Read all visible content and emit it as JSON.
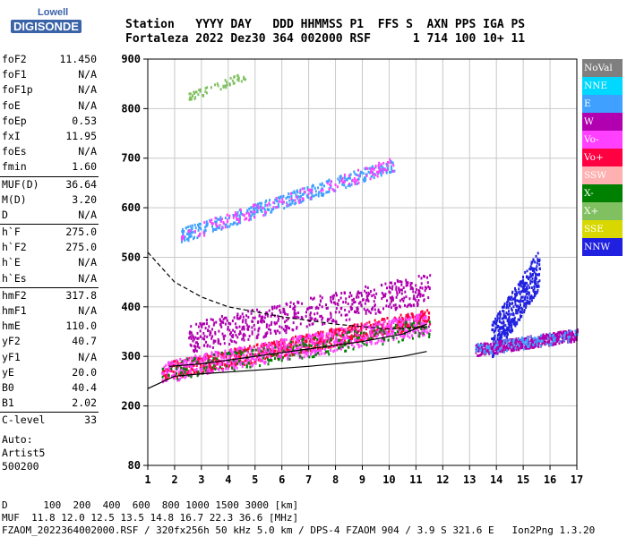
{
  "logo": {
    "line1": "Lowell",
    "line2": "DIGISONDE"
  },
  "header": {
    "row1": "Station   YYYY DAY   DDD HHMMSS P1  FFS S  AXN PPS IGA PS",
    "row2": "Fortaleza 2022 Dez30 364 002000 RSF      1 714 100 10+ 11"
  },
  "params": [
    {
      "group": [
        {
          "k": "foF2",
          "v": "11.450"
        },
        {
          "k": "foF1",
          "v": "N/A"
        },
        {
          "k": "foF1p",
          "v": "N/A"
        },
        {
          "k": "foE",
          "v": "N/A"
        },
        {
          "k": "foEp",
          "v": "0.53"
        },
        {
          "k": "fxI",
          "v": "11.95"
        },
        {
          "k": "foEs",
          "v": "N/A"
        },
        {
          "k": "fmin",
          "v": "1.60"
        }
      ]
    },
    {
      "group": [
        {
          "k": "MUF(D)",
          "v": "36.64"
        },
        {
          "k": "M(D)",
          "v": "3.20"
        },
        {
          "k": "D",
          "v": "N/A"
        }
      ]
    },
    {
      "group": [
        {
          "k": "h`F",
          "v": "275.0"
        },
        {
          "k": "h`F2",
          "v": "275.0"
        },
        {
          "k": "h`E",
          "v": "N/A"
        },
        {
          "k": "h`Es",
          "v": "N/A"
        }
      ]
    },
    {
      "group": [
        {
          "k": "hmF2",
          "v": "317.8"
        },
        {
          "k": "hmF1",
          "v": "N/A"
        },
        {
          "k": "hmE",
          "v": "110.0"
        },
        {
          "k": "yF2",
          "v": "40.7"
        },
        {
          "k": "yF1",
          "v": "N/A"
        },
        {
          "k": "yE",
          "v": "20.0"
        },
        {
          "k": "B0",
          "v": "40.4"
        },
        {
          "k": "B1",
          "v": "2.02"
        }
      ]
    },
    {
      "group": [
        {
          "k": "C-level",
          "v": "33"
        }
      ]
    }
  ],
  "auto": {
    "line1": "Auto:",
    "line2": "Artist5",
    "line3": "500200"
  },
  "legend": [
    {
      "label": "NoVal",
      "color": "#7f7f7f"
    },
    {
      "label": "NNE",
      "color": "#00d8ff"
    },
    {
      "label": "E",
      "color": "#3fa0ff"
    },
    {
      "label": "W",
      "color": "#b000b0"
    },
    {
      "label": "Vo-",
      "color": "#ff40ff"
    },
    {
      "label": "Vo+",
      "color": "#ff0040"
    },
    {
      "label": "SSW",
      "color": "#ffb0b0"
    },
    {
      "label": "X-",
      "color": "#008000"
    },
    {
      "label": "X+",
      "color": "#80c060"
    },
    {
      "label": "SSE",
      "color": "#d8d800"
    },
    {
      "label": "NNW",
      "color": "#2020e0"
    }
  ],
  "footer": {
    "line1": "D      100  200  400  600  800 1000 1500 3000 [km]",
    "line2": "MUF  11.8 12.0 12.5 13.5 14.8 16.7 22.3 36.6 [MHz]",
    "line3": "FZAOM_2022364002000.RSF / 320fx256h 50 kHz 5.0 km / DPS-4 FZAOM 904 / 3.9 S 321.6 E   Ion2Png 1.3.20"
  },
  "chart_data": {
    "type": "scatter",
    "xlim": [
      1,
      17
    ],
    "ylim": [
      80,
      900
    ],
    "x_ticks": [
      1,
      2,
      3,
      4,
      5,
      6,
      7,
      8,
      9,
      10,
      11,
      12,
      13,
      14,
      15,
      16,
      17
    ],
    "y_ticks": [
      80,
      200,
      300,
      400,
      500,
      600,
      700,
      800,
      900
    ],
    "grid": true,
    "echo_clusters": [
      {
        "name": "F2 trace",
        "x": [
          1.5,
          11.5
        ],
        "y": [
          270,
          380
        ],
        "color": "#ff0040",
        "density": 900,
        "spread": 18
      },
      {
        "name": "F2 trace",
        "x": [
          1.5,
          11.5
        ],
        "y": [
          270,
          370
        ],
        "color": "#ff40ff",
        "density": 700,
        "spread": 22
      },
      {
        "name": "F2 trace",
        "x": [
          1.5,
          11.5
        ],
        "y": [
          270,
          360
        ],
        "color": "#008000",
        "density": 220,
        "spread": 20
      },
      {
        "name": "spread F",
        "x": [
          2.5,
          11.5
        ],
        "y": [
          340,
          440
        ],
        "color": "#b000b0",
        "density": 600,
        "spread": 30
      },
      {
        "name": "second hop",
        "x": [
          2.2,
          10.2
        ],
        "y": [
          545,
          690
        ],
        "color": "#3fa0ff",
        "density": 380,
        "spread": 14
      },
      {
        "name": "second hop",
        "x": [
          2.2,
          10.2
        ],
        "y": [
          545,
          690
        ],
        "color": "#ff40ff",
        "density": 150,
        "spread": 14
      },
      {
        "name": "third hop",
        "x": [
          2.5,
          4.7
        ],
        "y": [
          825,
          870
        ],
        "color": "#80c060",
        "density": 60,
        "spread": 8
      },
      {
        "name": "high band",
        "x": [
          13.8,
          15.6
        ],
        "y": [
          330,
          480
        ],
        "color": "#2020e0",
        "density": 420,
        "spread": 40
      },
      {
        "name": "high band",
        "x": [
          13.2,
          17
        ],
        "y": [
          315,
          345
        ],
        "color": "#b000b0",
        "density": 500,
        "spread": 12
      },
      {
        "name": "high band",
        "x": [
          13.2,
          17
        ],
        "y": [
          315,
          345
        ],
        "color": "#3fa0ff",
        "density": 120,
        "spread": 12
      }
    ],
    "lines": [
      {
        "name": "lower",
        "color": "#000000",
        "dash": false,
        "points": [
          [
            1,
            235
          ],
          [
            2,
            260
          ],
          [
            3,
            265
          ],
          [
            5,
            272
          ],
          [
            7,
            280
          ],
          [
            9,
            290
          ],
          [
            10.5,
            300
          ],
          [
            11.4,
            310
          ]
        ]
      },
      {
        "name": "mid",
        "color": "#000000",
        "dash": false,
        "points": [
          [
            1.8,
            280
          ],
          [
            3,
            285
          ],
          [
            5,
            300
          ],
          [
            7,
            315
          ],
          [
            9,
            330
          ],
          [
            10.5,
            345
          ],
          [
            11.4,
            365
          ]
        ]
      },
      {
        "name": "dashed",
        "color": "#000000",
        "dash": true,
        "points": [
          [
            1,
            510
          ],
          [
            2,
            450
          ],
          [
            3,
            420
          ],
          [
            4,
            400
          ],
          [
            6,
            380
          ],
          [
            8,
            365
          ],
          [
            10,
            355
          ],
          [
            11.5,
            360
          ]
        ]
      }
    ]
  }
}
